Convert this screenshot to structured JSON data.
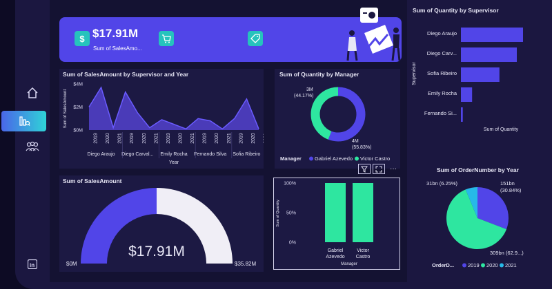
{
  "kpi": {
    "value": "$17.91M",
    "label": "Sum of SalesAmo..."
  },
  "sales_by_supervisor_year": {
    "title": "Sum of SalesAmount by Supervisor and Year",
    "ylabel": "Sum of SalesAmount",
    "xlabel": "Year",
    "yticks": [
      "$4M",
      "$2M",
      "$0M"
    ],
    "supervisors": [
      "Diego Araujo",
      "Diego Carval...",
      "Emily Rocha",
      "Fernando Silva",
      "Sofia Ribeiro"
    ],
    "years": [
      "2019",
      "2020",
      "2021"
    ],
    "values": [
      2.0,
      3.7,
      0.2,
      3.3,
      1.5,
      0.2,
      0.9,
      0.5,
      0.1,
      1.0,
      0.8,
      0.1,
      1.0,
      2.7,
      0.1
    ]
  },
  "quantity_by_manager": {
    "title": "Sum of Quantity by Manager",
    "legend_title": "Manager",
    "slices": [
      {
        "name": "Gabriel Azevedo",
        "pct": 55.83,
        "label": "4M",
        "pct_label": "(55.83%)",
        "color": "#5145e8"
      },
      {
        "name": "Victor Castro",
        "pct": 44.17,
        "label": "3M",
        "pct_label": "(44.17%)",
        "color": "#2ee6a0"
      }
    ]
  },
  "quantity_by_supervisor": {
    "title": "Sum of Quantity by Supervisor",
    "ylabel": "Supervisor",
    "xlabel": "Sum of Quantity",
    "categories": [
      "Diego Araujo",
      "Diego Carv...",
      "Sofia Ribeiro",
      "Emily Rocha",
      "Fernando Si..."
    ],
    "values": [
      100,
      90,
      62,
      18,
      3
    ]
  },
  "sales_gauge": {
    "title": "Sum of SalesAmount",
    "value": "$17.91M",
    "min": "$0M",
    "max": "$35.82M",
    "fraction": 0.5
  },
  "manager_pct_bars": {
    "ylabel": "Sum of Quantity",
    "xlabel": "Manager",
    "yticks": [
      "100%",
      "50%",
      "0%"
    ],
    "bars": [
      {
        "line1": "Gabriel",
        "line2": "Azevedo",
        "value": 100
      },
      {
        "line1": "Victor",
        "line2": "Castro",
        "value": 100
      }
    ]
  },
  "order_by_year": {
    "title": "Sum of OrderNumber by Year",
    "legend_title": "OrderD...",
    "slices": [
      {
        "year": "2019",
        "pct": 30.84,
        "label": "151bn",
        "pct_label": "(30.84%)",
        "color": "#5145e8"
      },
      {
        "year": "2020",
        "pct": 62.91,
        "label": "309bn (62.9...)",
        "color": "#2ee6a0"
      },
      {
        "year": "2021",
        "pct": 6.25,
        "label": "31bn (6.25%)",
        "color": "#27b9e8"
      }
    ]
  },
  "chart_data": [
    {
      "type": "area",
      "title": "Sum of SalesAmount by Supervisor and Year",
      "xlabel": "Year",
      "ylabel": "Sum of SalesAmount",
      "categories": [
        "Diego Araujo 2019",
        "Diego Araujo 2020",
        "Diego Araujo 2021",
        "Diego Carval... 2019",
        "Diego Carval... 2020",
        "Diego Carval... 2021",
        "Emily Rocha 2019",
        "Emily Rocha 2020",
        "Emily Rocha 2021",
        "Fernando Silva 2019",
        "Fernando Silva 2020",
        "Fernando Silva 2021",
        "Sofia Ribeiro 2019",
        "Sofia Ribeiro 2020",
        "Sofia Ribeiro 2021"
      ],
      "values": [
        2.0,
        3.7,
        0.2,
        3.3,
        1.5,
        0.2,
        0.9,
        0.5,
        0.1,
        1.0,
        0.8,
        0.1,
        1.0,
        2.7,
        0.1
      ],
      "ylim": [
        0,
        4
      ]
    },
    {
      "type": "pie",
      "title": "Sum of Quantity by Manager",
      "categories": [
        "Gabriel Azevedo",
        "Victor Castro"
      ],
      "values": [
        55.83,
        44.17
      ]
    },
    {
      "type": "bar",
      "title": "Sum of Quantity by Supervisor",
      "xlabel": "Sum of Quantity",
      "ylabel": "Supervisor",
      "categories": [
        "Diego Araujo",
        "Diego Carv...",
        "Sofia Ribeiro",
        "Emily Rocha",
        "Fernando Si..."
      ],
      "values": [
        100,
        90,
        62,
        18,
        3
      ]
    },
    {
      "type": "bar",
      "xlabel": "Manager",
      "ylabel": "Sum of Quantity",
      "categories": [
        "Gabriel Azevedo",
        "Victor Castro"
      ],
      "values": [
        100,
        100
      ],
      "ylim": [
        0,
        100
      ]
    },
    {
      "type": "pie",
      "title": "Sum of OrderNumber by Year",
      "categories": [
        "2019",
        "2020",
        "2021"
      ],
      "values": [
        30.84,
        62.91,
        6.25
      ]
    }
  ]
}
